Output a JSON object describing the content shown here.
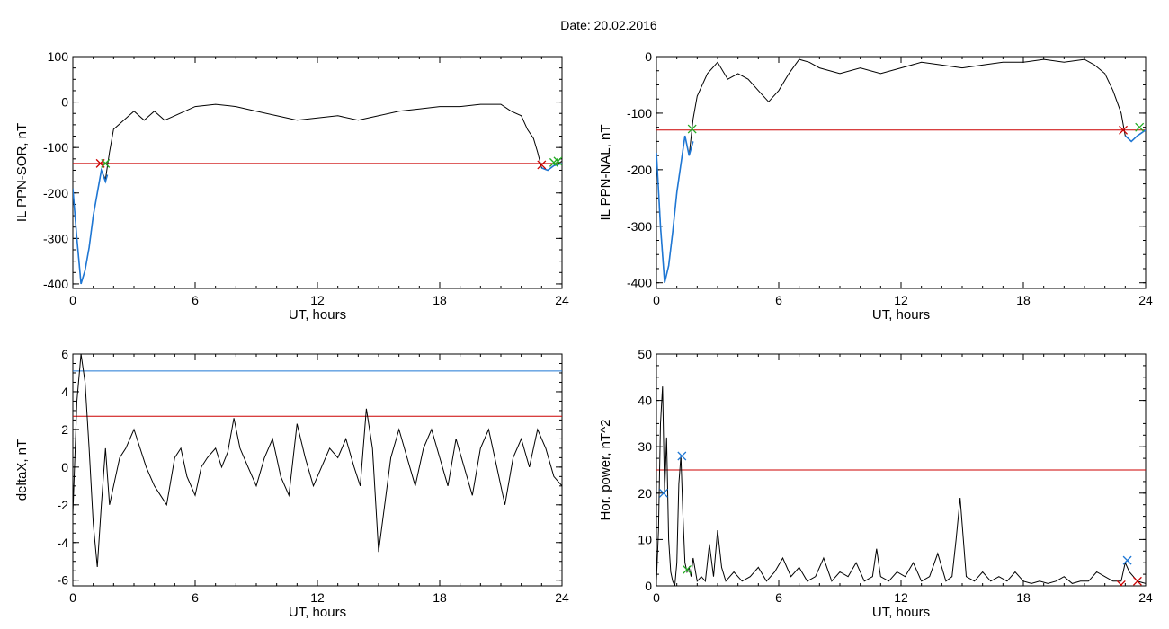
{
  "figure": {
    "title": "Date:  20.02.2016"
  },
  "chart_data": [
    {
      "type": "line",
      "id": "sor",
      "xlabel": "UT, hours",
      "ylabel": "IL PPN-SOR, nT",
      "xlim": [
        0,
        24
      ],
      "ylim": [
        -410,
        100
      ],
      "xticks": [
        0,
        6,
        12,
        18,
        24
      ],
      "yticks": [
        -400,
        -300,
        -200,
        -100,
        0,
        100
      ],
      "series": [
        {
          "color": "#000000",
          "x": [
            0,
            0.2,
            0.4,
            0.6,
            0.8,
            1.0,
            1.2,
            1.4,
            1.6,
            1.8,
            2.0,
            2.5,
            3.0,
            3.5,
            4.0,
            4.5,
            5.0,
            5.5,
            6.0,
            7.0,
            8.0,
            9.0,
            10.0,
            11.0,
            12.0,
            13.0,
            14.0,
            15.0,
            16.0,
            17.0,
            18.0,
            19.0,
            20.0,
            21.0,
            21.5,
            22.0,
            22.3,
            22.6,
            22.8,
            23.0,
            23.3,
            23.6,
            24.0
          ],
          "y": [
            -190,
            -300,
            -400,
            -370,
            -320,
            -250,
            -200,
            -150,
            -170,
            -110,
            -60,
            -40,
            -20,
            -40,
            -20,
            -40,
            -30,
            -20,
            -10,
            -5,
            -10,
            -20,
            -30,
            -40,
            -35,
            -30,
            -40,
            -30,
            -20,
            -15,
            -10,
            -10,
            -5,
            -5,
            -20,
            -30,
            -60,
            -80,
            -110,
            -145,
            -150,
            -140,
            -130
          ]
        },
        {
          "color": "#1f77d4",
          "x": [
            0,
            0.2,
            0.4,
            0.6,
            0.8,
            1.0,
            1.2,
            1.4,
            1.6,
            1.7,
            23.0,
            23.3,
            23.6,
            24.0
          ],
          "y": [
            -190,
            -300,
            -400,
            -370,
            -320,
            -250,
            -200,
            -150,
            -175,
            -160,
            -145,
            -150,
            -140,
            -135
          ]
        }
      ],
      "hlines": [
        {
          "y": -135,
          "color": "#cc0000"
        }
      ],
      "markers": [
        {
          "x": 1.35,
          "y": -135,
          "color": "#cc0000"
        },
        {
          "x": 1.6,
          "y": -135,
          "color": "#22aa22"
        },
        {
          "x": 23.0,
          "y": -138,
          "color": "#cc0000"
        },
        {
          "x": 23.6,
          "y": -133,
          "color": "#22aa22"
        },
        {
          "x": 23.8,
          "y": -130,
          "color": "#22aa22"
        }
      ]
    },
    {
      "type": "line",
      "id": "nal",
      "xlabel": "UT, hours",
      "ylabel": "IL PPN-NAL, nT",
      "xlim": [
        0,
        24
      ],
      "ylim": [
        -410,
        0
      ],
      "xticks": [
        0,
        6,
        12,
        18,
        24
      ],
      "yticks": [
        -400,
        -300,
        -200,
        -100,
        0
      ],
      "series": [
        {
          "color": "#000000",
          "x": [
            0,
            0.2,
            0.4,
            0.6,
            0.8,
            1.0,
            1.2,
            1.4,
            1.6,
            1.8,
            2.0,
            2.5,
            3.0,
            3.5,
            4.0,
            4.5,
            5.0,
            5.5,
            6.0,
            6.5,
            7.0,
            7.5,
            8.0,
            9.0,
            10.0,
            11.0,
            12.0,
            13.0,
            14.0,
            15.0,
            16.0,
            17.0,
            18.0,
            19.0,
            20.0,
            21.0,
            21.5,
            22.0,
            22.4,
            22.8,
            23.0,
            23.3,
            23.6,
            24.0
          ],
          "y": [
            -170,
            -300,
            -400,
            -370,
            -310,
            -240,
            -190,
            -140,
            -175,
            -110,
            -70,
            -30,
            -10,
            -40,
            -30,
            -40,
            -60,
            -80,
            -60,
            -30,
            -5,
            -10,
            -20,
            -30,
            -20,
            -30,
            -20,
            -10,
            -15,
            -20,
            -15,
            -10,
            -10,
            -5,
            -10,
            -5,
            -15,
            -30,
            -60,
            -100,
            -140,
            -150,
            -140,
            -130
          ]
        },
        {
          "color": "#1f77d4",
          "x": [
            0,
            0.2,
            0.4,
            0.6,
            0.8,
            1.0,
            1.2,
            1.4,
            1.6,
            1.8,
            23.0,
            23.3,
            23.6,
            24.0
          ],
          "y": [
            -170,
            -300,
            -400,
            -370,
            -310,
            -240,
            -190,
            -140,
            -175,
            -150,
            -140,
            -150,
            -140,
            -130
          ]
        }
      ],
      "hlines": [
        {
          "y": -130,
          "color": "#cc0000"
        }
      ],
      "markers": [
        {
          "x": 1.75,
          "y": -128,
          "color": "#22aa22"
        },
        {
          "x": 22.9,
          "y": -130,
          "color": "#cc0000"
        },
        {
          "x": 23.7,
          "y": -125,
          "color": "#22aa22"
        }
      ]
    },
    {
      "type": "line",
      "id": "deltax",
      "xlabel": "UT, hours",
      "ylabel": "deltaX, nT",
      "xlim": [
        0,
        24
      ],
      "ylim": [
        -6.3,
        6
      ],
      "xticks": [
        0,
        6,
        12,
        18,
        24
      ],
      "yticks": [
        -6,
        -4,
        -2,
        0,
        2,
        4,
        6
      ],
      "series": [
        {
          "color": "#000000",
          "x": [
            0,
            0.2,
            0.4,
            0.6,
            0.8,
            1.0,
            1.2,
            1.4,
            1.6,
            1.8,
            2.0,
            2.3,
            2.6,
            3.0,
            3.3,
            3.6,
            4.0,
            4.3,
            4.6,
            5.0,
            5.3,
            5.6,
            6.0,
            6.3,
            6.6,
            7.0,
            7.3,
            7.6,
            7.9,
            8.2,
            8.6,
            9.0,
            9.4,
            9.8,
            10.2,
            10.6,
            11.0,
            11.4,
            11.8,
            12.2,
            12.6,
            13.0,
            13.4,
            13.8,
            14.1,
            14.4,
            14.7,
            15.0,
            15.3,
            15.6,
            16.0,
            16.4,
            16.8,
            17.2,
            17.6,
            18.0,
            18.4,
            18.8,
            19.2,
            19.6,
            20.0,
            20.4,
            20.8,
            21.2,
            21.6,
            22.0,
            22.4,
            22.8,
            23.2,
            23.6,
            24.0
          ],
          "y": [
            -2.5,
            3.5,
            6.0,
            4.5,
            1.0,
            -3.0,
            -5.3,
            -2.0,
            1.0,
            -2.0,
            -1.0,
            0.5,
            1.0,
            2.0,
            1.0,
            0.0,
            -1.0,
            -1.5,
            -2.0,
            0.5,
            1.0,
            -0.5,
            -1.5,
            0.0,
            0.5,
            1.0,
            0.0,
            0.8,
            2.6,
            1.0,
            0.0,
            -1.0,
            0.5,
            1.5,
            -0.5,
            -1.5,
            2.3,
            0.5,
            -1.0,
            0.0,
            1.0,
            0.5,
            1.5,
            0.0,
            -1.0,
            3.1,
            1.0,
            -4.5,
            -2.0,
            0.5,
            2.0,
            0.5,
            -1.0,
            1.0,
            2.0,
            0.5,
            -1.0,
            1.5,
            0.0,
            -1.5,
            1.0,
            2.0,
            0.0,
            -2.0,
            0.5,
            1.5,
            0.0,
            2.0,
            1.0,
            -0.5,
            -1.0
          ]
        }
      ],
      "hlines": [
        {
          "y": 5.1,
          "color": "#1f77d4"
        },
        {
          "y": 2.7,
          "color": "#cc0000"
        }
      ],
      "markers": []
    },
    {
      "type": "line",
      "id": "power",
      "xlabel": "UT, hours",
      "ylabel": "Hor. power, nT^2",
      "xlim": [
        0,
        24
      ],
      "ylim": [
        0,
        50
      ],
      "xticks": [
        0,
        6,
        12,
        18,
        24
      ],
      "yticks": [
        0,
        10,
        20,
        30,
        40,
        50
      ],
      "series": [
        {
          "color": "#000000",
          "x": [
            0,
            0.1,
            0.2,
            0.3,
            0.4,
            0.5,
            0.6,
            0.7,
            0.8,
            0.9,
            1.0,
            1.1,
            1.2,
            1.3,
            1.4,
            1.5,
            1.6,
            1.7,
            1.8,
            2.0,
            2.2,
            2.4,
            2.6,
            2.8,
            3.0,
            3.2,
            3.4,
            3.8,
            4.2,
            4.6,
            5.0,
            5.4,
            5.8,
            6.2,
            6.6,
            7.0,
            7.4,
            7.8,
            8.2,
            8.6,
            9.0,
            9.4,
            9.8,
            10.2,
            10.6,
            10.8,
            11.0,
            11.4,
            11.8,
            12.2,
            12.6,
            13.0,
            13.4,
            13.8,
            14.2,
            14.5,
            14.7,
            14.9,
            15.2,
            15.6,
            16.0,
            16.4,
            16.8,
            17.2,
            17.6,
            18.0,
            18.4,
            18.8,
            19.2,
            19.6,
            20.0,
            20.4,
            20.8,
            21.2,
            21.6,
            22.0,
            22.4,
            22.8,
            23.0,
            23.2,
            23.4,
            23.6,
            24.0
          ],
          "y": [
            1,
            12,
            35,
            43,
            20,
            32,
            10,
            3,
            1,
            0,
            5,
            22,
            28,
            15,
            5,
            3,
            4,
            2,
            6,
            1,
            2,
            1,
            9,
            2,
            12,
            4,
            1,
            3,
            1,
            2,
            4,
            1,
            3,
            6,
            2,
            4,
            1,
            2,
            6,
            1,
            3,
            2,
            5,
            1,
            2,
            8,
            2,
            1,
            3,
            2,
            5,
            1,
            2,
            7,
            1,
            2,
            10,
            19,
            2,
            1,
            3,
            1,
            2,
            1,
            3,
            1,
            0.5,
            1,
            0.5,
            1,
            2,
            0.5,
            1,
            1,
            3,
            2,
            1,
            1,
            5,
            3,
            2,
            1,
            0.5
          ]
        }
      ],
      "hlines": [
        {
          "y": 25,
          "color": "#cc0000"
        }
      ],
      "markers": [
        {
          "x": 0.35,
          "y": 20,
          "color": "#1f77d4"
        },
        {
          "x": 1.25,
          "y": 28,
          "color": "#1f77d4"
        },
        {
          "x": 1.5,
          "y": 3.5,
          "color": "#22aa22"
        },
        {
          "x": 23.1,
          "y": 5.5,
          "color": "#1f77d4"
        },
        {
          "x": 22.8,
          "y": 0.2,
          "color": "#cc0000"
        },
        {
          "x": 23.6,
          "y": 1.0,
          "color": "#cc0000"
        }
      ]
    }
  ]
}
